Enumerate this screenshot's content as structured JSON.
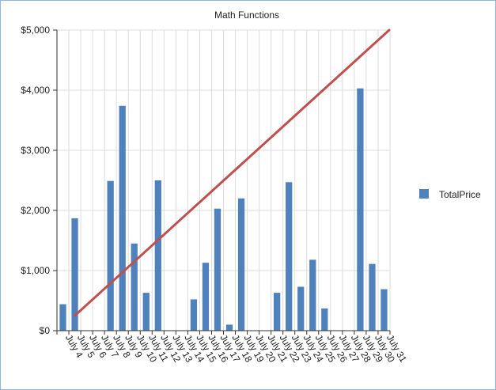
{
  "chart_data": {
    "type": "bar",
    "title": "Math Functions",
    "xlabel": "",
    "ylabel": "",
    "ylim": [
      0,
      5000
    ],
    "yticks": [
      0,
      1000,
      2000,
      3000,
      4000,
      5000
    ],
    "ytick_labels": [
      "$0",
      "$1,000",
      "$2,000",
      "$3,000",
      "$4,000",
      "$5,000"
    ],
    "categories": [
      "July 4",
      "July 5",
      "July 6",
      "July 7",
      "July 8",
      "July 9",
      "July 10",
      "July 11",
      "July 12",
      "July 13",
      "July 14",
      "July 15",
      "July 16",
      "July 17",
      "July 18",
      "July 19",
      "July 20",
      "July 21",
      "July 22",
      "July 23",
      "July 24",
      "July 25",
      "July 26",
      "July 27",
      "July 28",
      "July 29",
      "July 30",
      "July 31"
    ],
    "series": [
      {
        "name": "TotalPrice",
        "color": "#4f81bd",
        "values": [
          440,
          1870,
          0,
          0,
          2490,
          3740,
          1450,
          630,
          2500,
          0,
          0,
          520,
          1130,
          2030,
          100,
          2200,
          0,
          0,
          630,
          2470,
          730,
          1180,
          370,
          0,
          0,
          4030,
          1110,
          690
        ]
      }
    ],
    "overlay_line": {
      "color": "#c0504d",
      "x_start": "July 5",
      "y_start": 250,
      "x_end": "July 31",
      "y_end": 5000
    },
    "grid": true,
    "legend_position": "right"
  }
}
